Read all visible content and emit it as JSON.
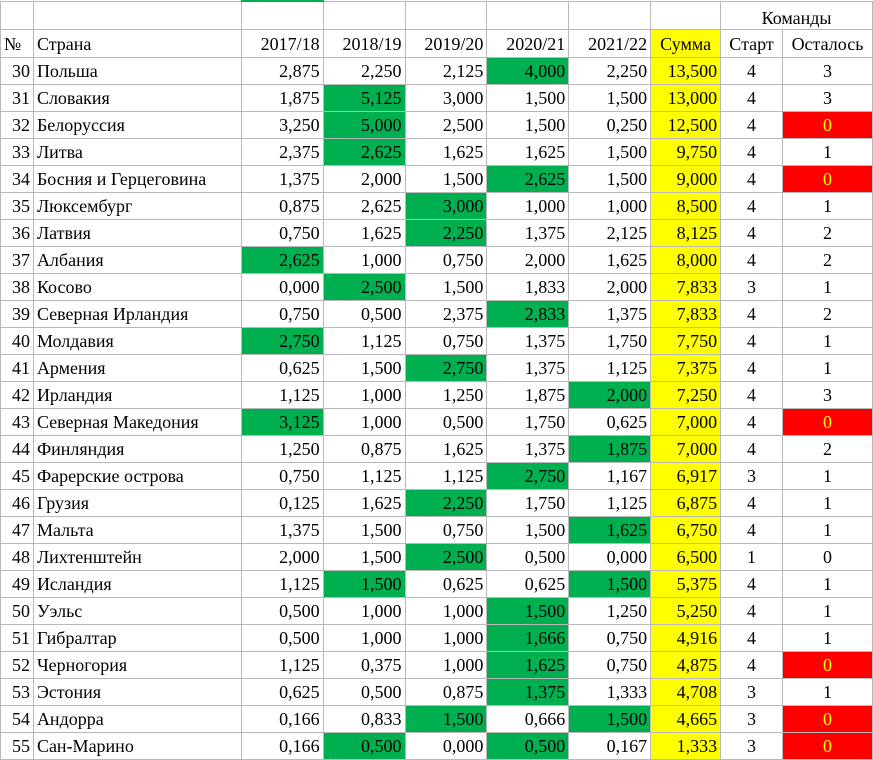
{
  "header_top": {
    "teams_label": "Команды"
  },
  "columns": [
    "№",
    "Страна",
    "2017/18",
    "2018/19",
    "2019/20",
    "2020/21",
    "2021/22",
    "Сумма",
    "Старт",
    "Осталось"
  ],
  "colors": {
    "green": "#00b050",
    "yellow": "#ffff00",
    "red": "#ff0000"
  },
  "rows": [
    {
      "n": "30",
      "country": "Польша",
      "v": [
        "2,875",
        "2,250",
        "2,125",
        "4,000",
        "2,250"
      ],
      "sum": "13,500",
      "start": "4",
      "left": "3",
      "hi": 3,
      "red": false
    },
    {
      "n": "31",
      "country": "Словакия",
      "v": [
        "1,875",
        "5,125",
        "3,000",
        "1,500",
        "1,500"
      ],
      "sum": "13,000",
      "start": "4",
      "left": "3",
      "hi": 1,
      "red": false
    },
    {
      "n": "32",
      "country": "Белоруссия",
      "v": [
        "3,250",
        "5,000",
        "2,500",
        "1,500",
        "0,250"
      ],
      "sum": "12,500",
      "start": "4",
      "left": "0",
      "hi": 1,
      "red": true
    },
    {
      "n": "33",
      "country": "Литва",
      "v": [
        "2,375",
        "2,625",
        "1,625",
        "1,625",
        "1,500"
      ],
      "sum": "9,750",
      "start": "4",
      "left": "1",
      "hi": 1,
      "red": false
    },
    {
      "n": "34",
      "country": "Босния и Герцеговина",
      "v": [
        "1,375",
        "2,000",
        "1,500",
        "2,625",
        "1,500"
      ],
      "sum": "9,000",
      "start": "4",
      "left": "0",
      "hi": 3,
      "red": true
    },
    {
      "n": "35",
      "country": "Люксембург",
      "v": [
        "0,875",
        "2,625",
        "3,000",
        "1,000",
        "1,000"
      ],
      "sum": "8,500",
      "start": "4",
      "left": "1",
      "hi": 2,
      "red": false
    },
    {
      "n": "36",
      "country": "Латвия",
      "v": [
        "0,750",
        "1,625",
        "2,250",
        "1,375",
        "2,125"
      ],
      "sum": "8,125",
      "start": "4",
      "left": "2",
      "hi": 2,
      "red": false
    },
    {
      "n": "37",
      "country": "Албания",
      "v": [
        "2,625",
        "1,000",
        "0,750",
        "2,000",
        "1,625"
      ],
      "sum": "8,000",
      "start": "4",
      "left": "2",
      "hi": 0,
      "red": false
    },
    {
      "n": "38",
      "country": "Косово",
      "v": [
        "0,000",
        "2,500",
        "1,500",
        "1,833",
        "2,000"
      ],
      "sum": "7,833",
      "start": "3",
      "left": "1",
      "hi": 1,
      "red": false
    },
    {
      "n": "39",
      "country": "Северная Ирландия",
      "v": [
        "0,750",
        "0,500",
        "2,375",
        "2,833",
        "1,375"
      ],
      "sum": "7,833",
      "start": "4",
      "left": "2",
      "hi": 3,
      "red": false
    },
    {
      "n": "40",
      "country": "Молдавия",
      "v": [
        "2,750",
        "1,125",
        "0,750",
        "1,375",
        "1,750"
      ],
      "sum": "7,750",
      "start": "4",
      "left": "1",
      "hi": 0,
      "red": false
    },
    {
      "n": "41",
      "country": "Армения",
      "v": [
        "0,625",
        "1,500",
        "2,750",
        "1,375",
        "1,125"
      ],
      "sum": "7,375",
      "start": "4",
      "left": "1",
      "hi": 2,
      "red": false
    },
    {
      "n": "42",
      "country": "Ирландия",
      "v": [
        "1,125",
        "1,000",
        "1,250",
        "1,875",
        "2,000"
      ],
      "sum": "7,250",
      "start": "4",
      "left": "3",
      "hi": 4,
      "red": false
    },
    {
      "n": "43",
      "country": "Северная Македония",
      "v": [
        "3,125",
        "1,000",
        "0,500",
        "1,750",
        "0,625"
      ],
      "sum": "7,000",
      "start": "4",
      "left": "0",
      "hi": 0,
      "red": true
    },
    {
      "n": "44",
      "country": "Финляндия",
      "v": [
        "1,250",
        "0,875",
        "1,625",
        "1,375",
        "1,875"
      ],
      "sum": "7,000",
      "start": "4",
      "left": "2",
      "hi": 4,
      "red": false
    },
    {
      "n": "45",
      "country": "Фарерские острова",
      "v": [
        "0,750",
        "1,125",
        "1,125",
        "2,750",
        "1,167"
      ],
      "sum": "6,917",
      "start": "3",
      "left": "1",
      "hi": 3,
      "red": false
    },
    {
      "n": "46",
      "country": "Грузия",
      "v": [
        "0,125",
        "1,625",
        "2,250",
        "1,750",
        "1,125"
      ],
      "sum": "6,875",
      "start": "4",
      "left": "1",
      "hi": 2,
      "red": false
    },
    {
      "n": "47",
      "country": "Мальта",
      "v": [
        "1,375",
        "1,500",
        "0,750",
        "1,500",
        "1,625"
      ],
      "sum": "6,750",
      "start": "4",
      "left": "1",
      "hi": 4,
      "red": false
    },
    {
      "n": "48",
      "country": "Лихтенштейн",
      "v": [
        "2,000",
        "1,500",
        "2,500",
        "0,500",
        "0,000"
      ],
      "sum": "6,500",
      "start": "1",
      "left": "0",
      "hi": 2,
      "red": false
    },
    {
      "n": "49",
      "country": "Исландия",
      "v": [
        "1,125",
        "1,500",
        "0,625",
        "0,625",
        "1,500"
      ],
      "sum": "5,375",
      "start": "4",
      "left": "1",
      "hi": [
        1,
        4
      ],
      "red": false
    },
    {
      "n": "50",
      "country": "Уэльс",
      "v": [
        "0,500",
        "1,000",
        "1,000",
        "1,500",
        "1,250"
      ],
      "sum": "5,250",
      "start": "4",
      "left": "1",
      "hi": 3,
      "red": false
    },
    {
      "n": "51",
      "country": "Гибралтар",
      "v": [
        "0,500",
        "1,000",
        "1,000",
        "1,666",
        "0,750"
      ],
      "sum": "4,916",
      "start": "4",
      "left": "1",
      "hi": 3,
      "red": false
    },
    {
      "n": "52",
      "country": "Черногория",
      "v": [
        "1,125",
        "0,375",
        "1,000",
        "1,625",
        "0,750"
      ],
      "sum": "4,875",
      "start": "4",
      "left": "0",
      "hi": 3,
      "red": true
    },
    {
      "n": "53",
      "country": "Эстония",
      "v": [
        "0,625",
        "0,500",
        "0,875",
        "1,375",
        "1,333"
      ],
      "sum": "4,708",
      "start": "3",
      "left": "1",
      "hi": 3,
      "red": false
    },
    {
      "n": "54",
      "country": "Андорра",
      "v": [
        "0,166",
        "0,833",
        "1,500",
        "0,666",
        "1,500"
      ],
      "sum": "4,665",
      "start": "3",
      "left": "0",
      "hi": [
        2,
        4
      ],
      "red": true
    },
    {
      "n": "55",
      "country": "Сан-Марино",
      "v": [
        "0,166",
        "0,500",
        "0,000",
        "0,500",
        "0,167"
      ],
      "sum": "1,333",
      "start": "3",
      "left": "0",
      "hi": [
        1,
        3
      ],
      "red": true
    }
  ]
}
